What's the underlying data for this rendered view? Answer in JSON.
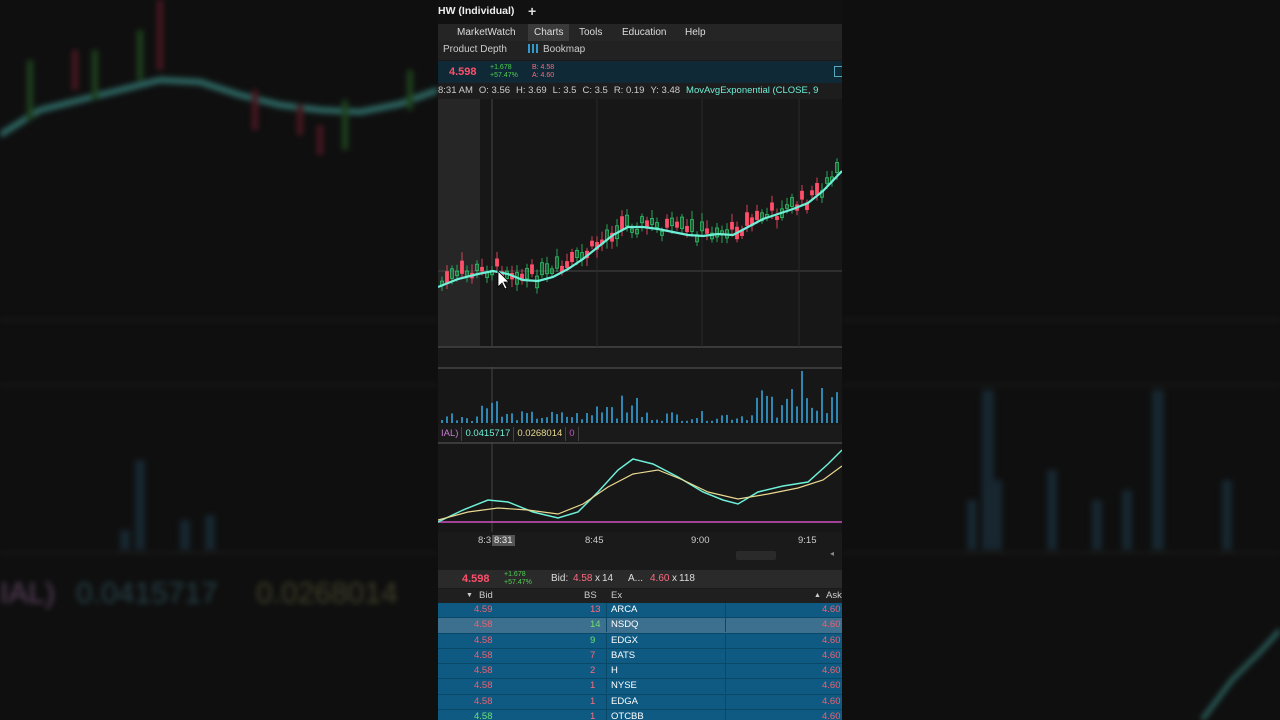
{
  "window": {
    "title": "HW (Individual)",
    "new_tab": "+"
  },
  "menu": {
    "items": [
      "MarketWatch",
      "Charts",
      "Tools",
      "Education",
      "Help"
    ],
    "active": "Charts"
  },
  "submenu": {
    "product_depth": "Product Depth",
    "bookmap": "Bookmap"
  },
  "quote": {
    "last": "4.598",
    "change": "+1.678",
    "change_pct": "+57.47%",
    "bid": "B: 4.58",
    "ask": "A: 4.60"
  },
  "chart_header": {
    "time": "8:31 AM",
    "open": "O: 3.56",
    "high": "H: 3.69",
    "low": "L: 3.5",
    "close": "C: 3.5",
    "range": "R: 0.19",
    "y": "Y: 3.48",
    "study": "MovAvgExponential (CLOSE, 9"
  },
  "macd": {
    "label": "IAL)",
    "value": "0.0415717",
    "avg": "0.0268014",
    "diff": "0"
  },
  "time_axis": {
    "first": "8:3",
    "cursor": "8:31",
    "t845": "8:45",
    "t900": "9:00",
    "t915": "9:15"
  },
  "bottom_quote": {
    "last": "4.598",
    "change": "+1.678",
    "change_pct": "+57.47%",
    "bid_label": "Bid:",
    "bid": "4.58",
    "bid_size": "14",
    "ask_label": "A...",
    "ask": "4.60",
    "ask_size": "118",
    "x": "x"
  },
  "book": {
    "headers": {
      "bid": "Bid",
      "bs": "BS",
      "ex": "Ex",
      "ask": "Ask"
    },
    "rows": [
      {
        "bid": "4.59",
        "bs": "13",
        "ex": "ARCA",
        "ask": "4.60"
      },
      {
        "bid": "4.58",
        "bs": "14",
        "ex": "NSDQ",
        "ask": "4.60"
      },
      {
        "bid": "4.58",
        "bs": "9",
        "ex": "EDGX",
        "ask": "4.60"
      },
      {
        "bid": "4.58",
        "bs": "7",
        "ex": "BATS",
        "ask": "4.60"
      },
      {
        "bid": "4.58",
        "bs": "2",
        "ex": "H",
        "ask": "4.60"
      },
      {
        "bid": "4.58",
        "bs": "1",
        "ex": "NYSE",
        "ask": "4.60"
      },
      {
        "bid": "4.58",
        "bs": "1",
        "ex": "EDGA",
        "ask": "4.60"
      },
      {
        "bid": "4.58",
        "bs": "1",
        "ex": "OTCBB",
        "ask": "4.60"
      }
    ]
  },
  "background": {
    "label": "IAL)",
    "value": "0.0415717",
    "avg": "0.0268014"
  },
  "colors": {
    "up": "#2fc46a",
    "down": "#ff4f6a",
    "ema": "#6ef0d8",
    "signal": "#e8d890",
    "volume": "#2e86b3",
    "book_row": "#0f5a82"
  }
}
